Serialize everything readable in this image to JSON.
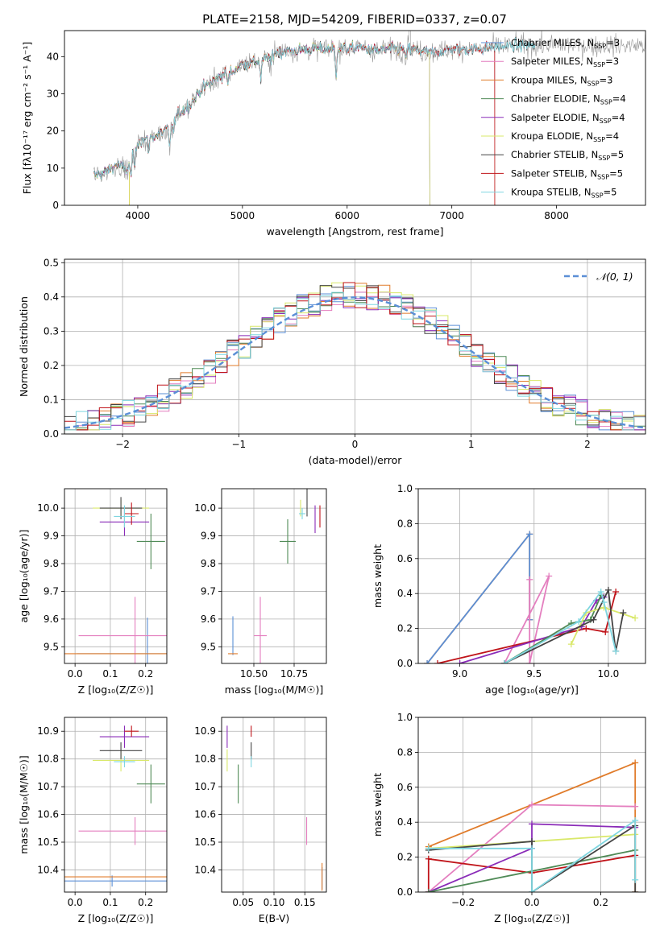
{
  "title": "PLATE=2158, MJD=54209, FIBERID=0337, z=0.07",
  "colors": {
    "Chabrier MILES": "#5b8fd6",
    "Salpeter MILES": "#e47fbf",
    "Kroupa MILES": "#e07b2a",
    "Chabrier ELODIE": "#4f8a56",
    "Salpeter ELODIE": "#8a2bb8",
    "Kroupa ELODIE": "#d9e86a",
    "Chabrier STELIB": "#444444",
    "Salpeter STELIB": "#c0141a",
    "Kroupa STELIB": "#7fd6e0"
  },
  "chart_data": [
    {
      "id": "spectrum",
      "type": "line",
      "xlabel": "wavelength [Angstrom, rest frame]",
      "ylabel": "Flux [f$_\\lambda$10$^{-17}$ erg cm$^{-2}$ s$^{-1}$ A$^{-1}$]",
      "ylabel_display": "Flux [fλ10⁻¹⁷ erg cm⁻² s⁻¹ A⁻¹]",
      "xlim": [
        3300,
        8850
      ],
      "ylim": [
        0,
        47
      ],
      "xticks": [
        4000,
        5000,
        6000,
        7000,
        8000
      ],
      "yticks": [
        0,
        10,
        20,
        30,
        40
      ],
      "grid": false,
      "legend_position": "right",
      "legend": [
        {
          "label": "Chabrier MILES, N",
          "sub": "SSP",
          "suffix": "=3",
          "key": "Chabrier MILES"
        },
        {
          "label": "Salpeter MILES, N",
          "sub": "SSP",
          "suffix": "=3",
          "key": "Salpeter MILES"
        },
        {
          "label": "Kroupa MILES, N",
          "sub": "SSP",
          "suffix": "=3",
          "key": "Kroupa MILES"
        },
        {
          "label": "Chabrier ELODIE, N",
          "sub": "SSP",
          "suffix": "=4",
          "key": "Chabrier ELODIE"
        },
        {
          "label": "Salpeter ELODIE, N",
          "sub": "SSP",
          "suffix": "=4",
          "key": "Salpeter ELODIE"
        },
        {
          "label": "Kroupa ELODIE, N",
          "sub": "SSP",
          "suffix": "=4",
          "key": "Kroupa ELODIE"
        },
        {
          "label": "Chabrier STELIB, N",
          "sub": "SSP",
          "suffix": "=5",
          "key": "Chabrier STELIB"
        },
        {
          "label": "Salpeter STELIB, N",
          "sub": "SSP",
          "suffix": "=5",
          "key": "Salpeter STELIB"
        },
        {
          "label": "Kroupa STELIB, N",
          "sub": "SSP",
          "suffix": "=5",
          "key": "Kroupa STELIB"
        }
      ],
      "continuum": [
        [
          3580,
          8
        ],
        [
          3700,
          9
        ],
        [
          3800,
          11
        ],
        [
          3900,
          9.5
        ],
        [
          4000,
          17
        ],
        [
          4100,
          18
        ],
        [
          4200,
          19
        ],
        [
          4300,
          21
        ],
        [
          4400,
          25
        ],
        [
          4500,
          27
        ],
        [
          4600,
          31
        ],
        [
          4700,
          33
        ],
        [
          4800,
          35
        ],
        [
          4900,
          36
        ],
        [
          5000,
          38
        ],
        [
          5100,
          38.5
        ],
        [
          5200,
          39
        ],
        [
          5300,
          41
        ],
        [
          5400,
          41.5
        ],
        [
          5500,
          41.5
        ],
        [
          5600,
          42
        ],
        [
          5700,
          42
        ],
        [
          5800,
          42
        ],
        [
          5900,
          42.5
        ],
        [
          6000,
          42
        ],
        [
          6100,
          42.5
        ],
        [
          6200,
          42
        ],
        [
          6300,
          41.5
        ],
        [
          6400,
          42
        ],
        [
          6500,
          42
        ],
        [
          6600,
          42
        ],
        [
          6700,
          41.5
        ],
        [
          6800,
          41
        ],
        [
          6900,
          41.5
        ],
        [
          7000,
          42
        ],
        [
          7200,
          42
        ],
        [
          7400,
          42.5
        ],
        [
          7600,
          43
        ]
      ],
      "absorption_lines": [
        {
          "x": 3934,
          "depth": 4
        },
        {
          "x": 3969,
          "depth": 4
        },
        {
          "x": 4102,
          "depth": 3
        },
        {
          "x": 4304,
          "depth": 6
        },
        {
          "x": 4340,
          "depth": 3
        },
        {
          "x": 4861,
          "depth": 3
        },
        {
          "x": 5175,
          "depth": 5
        },
        {
          "x": 5270,
          "depth": 3
        },
        {
          "x": 5894,
          "depth": 8
        },
        {
          "x": 6563,
          "depth": 3
        }
      ],
      "spectrum_end": [
        {
          "key": "Chabrier MILES",
          "x": 7410,
          "drop": true
        },
        {
          "key": "Salpeter MILES",
          "x": 7410,
          "drop": true
        },
        {
          "key": "Kroupa MILES",
          "x": 7410,
          "drop": true
        },
        {
          "key": "Chabrier ELODIE",
          "x": 6790,
          "drop": true
        },
        {
          "key": "Salpeter ELODIE",
          "x": 6790,
          "drop": true
        },
        {
          "key": "Kroupa ELODIE",
          "x": 6790,
          "drop": true
        },
        {
          "key": "Chabrier STELIB",
          "x": 7800,
          "drop": false
        },
        {
          "key": "Salpeter STELIB",
          "x": 7410,
          "drop": true
        },
        {
          "key": "Kroupa STELIB",
          "x": 7800,
          "drop": false
        }
      ],
      "observed_end": 8850
    },
    {
      "id": "residuals",
      "type": "histogram",
      "xlabel": "(data-model)/error",
      "ylabel": "Normed distribution",
      "xlim": [
        -2.5,
        2.5
      ],
      "ylim": [
        0,
        0.51
      ],
      "xticks": [
        -2,
        -1,
        0,
        1,
        2
      ],
      "yticks": [
        0.0,
        0.1,
        0.2,
        0.3,
        0.4,
        0.5
      ],
      "grid": true,
      "legend": [
        {
          "label": "𝒩(0, 1)",
          "style": "dashed",
          "color": "#5b8fd6"
        }
      ],
      "legend_position": "top-right",
      "bin_width": 0.1,
      "gaussian": {
        "mu": 0,
        "sigma": 1
      }
    },
    {
      "id": "age-vs-Z",
      "type": "errorbar",
      "xlabel": "Z [log₁₀(Z/Z☉)]",
      "ylabel": "age  [log₁₀(age/yr)]",
      "xlim": [
        -0.03,
        0.26
      ],
      "ylim": [
        9.44,
        10.07
      ],
      "xticks": [
        0.0,
        0.1,
        0.2
      ],
      "yticks": [
        9.5,
        9.6,
        9.7,
        9.8,
        9.9,
        10.0
      ],
      "grid": true,
      "points": [
        {
          "key": "Chabrier MILES",
          "x": 0.205,
          "xerr": 0.2,
          "y": 9.475,
          "yerr": 0.13
        },
        {
          "key": "Salpeter MILES",
          "x": 0.17,
          "xerr": 0.16,
          "y": 9.54,
          "yerr": 0.14
        },
        {
          "key": "Kroupa MILES",
          "x": 0.105,
          "xerr": 0.21,
          "y": 9.475,
          "yerr": 0.0
        },
        {
          "key": "Chabrier ELODIE",
          "x": 0.215,
          "xerr": 0.04,
          "y": 9.88,
          "yerr": 0.1
        },
        {
          "key": "Salpeter ELODIE",
          "x": 0.14,
          "xerr": 0.07,
          "y": 9.95,
          "yerr": 0.05
        },
        {
          "key": "Kroupa ELODIE",
          "x": 0.13,
          "xerr": 0.08,
          "y": 10.0,
          "yerr": 0.03
        },
        {
          "key": "Chabrier STELIB",
          "x": 0.13,
          "xerr": 0.06,
          "y": 10.0,
          "yerr": 0.04
        },
        {
          "key": "Salpeter STELIB",
          "x": 0.16,
          "xerr": 0.02,
          "y": 9.98,
          "yerr": 0.04
        },
        {
          "key": "Kroupa STELIB",
          "x": 0.14,
          "xerr": 0.03,
          "y": 9.97,
          "yerr": 0.04
        }
      ]
    },
    {
      "id": "age-vs-mass",
      "type": "errorbar",
      "xlabel": "mass [log₁₀(M/M☉)]",
      "ylabel": "",
      "xlim": [
        10.3,
        10.95
      ],
      "ylim": [
        9.44,
        10.07
      ],
      "xticks": [
        10.5,
        10.75
      ],
      "yticks": [
        9.5,
        9.6,
        9.7,
        9.8,
        9.9,
        10.0
      ],
      "grid": true,
      "points": [
        {
          "key": "Chabrier MILES",
          "x": 10.37,
          "xerr": 0.0,
          "y": 9.54,
          "yerr": 0.07
        },
        {
          "key": "Salpeter MILES",
          "x": 10.54,
          "xerr": 0.04,
          "y": 9.54,
          "yerr": 0.14
        },
        {
          "key": "Kroupa MILES",
          "x": 10.37,
          "xerr": 0.03,
          "y": 9.475,
          "yerr": 0.0
        },
        {
          "key": "Chabrier ELODIE",
          "x": 10.71,
          "xerr": 0.05,
          "y": 9.88,
          "yerr": 0.08
        },
        {
          "key": "Salpeter ELODIE",
          "x": 10.88,
          "xerr": 0.0,
          "y": 9.96,
          "yerr": 0.05
        },
        {
          "key": "Kroupa ELODIE",
          "x": 10.79,
          "xerr": 0.0,
          "y": 10.0,
          "yerr": 0.03
        },
        {
          "key": "Chabrier STELIB",
          "x": 10.83,
          "xerr": 0.0,
          "y": 10.02,
          "yerr": 0.05
        },
        {
          "key": "Salpeter STELIB",
          "x": 10.91,
          "xerr": 0.0,
          "y": 9.97,
          "yerr": 0.04
        },
        {
          "key": "Kroupa STELIB",
          "x": 10.8,
          "xerr": 0.02,
          "y": 9.98,
          "yerr": 0.02
        }
      ]
    },
    {
      "id": "mass-weight-vs-age",
      "type": "line",
      "xlabel": "age  [log₁₀(age/yr)]",
      "ylabel": "mass weight",
      "xlim": [
        8.72,
        10.25
      ],
      "ylim": [
        0,
        1
      ],
      "xticks": [
        9.0,
        9.5,
        10.0
      ],
      "yticks": [
        0.0,
        0.2,
        0.4,
        0.6,
        0.8,
        1.0
      ],
      "grid": true,
      "series": [
        {
          "key": "Kroupa MILES",
          "x": [
            8.78,
            9.47,
            9.47
          ],
          "y": [
            0.0,
            0.74,
            0.25
          ]
        },
        {
          "key": "Chabrier MILES",
          "x": [
            8.78,
            9.47,
            9.47
          ],
          "y": [
            0.0,
            0.74,
            0.25
          ]
        },
        {
          "key": "Salpeter MILES",
          "x": [
            9.47,
            9.47,
            9.6,
            9.3
          ],
          "y": [
            0.48,
            0.0,
            0.5,
            0.0
          ]
        },
        {
          "key": "Salpeter STELIB",
          "x": [
            8.85,
            9.85,
            9.98,
            10.05
          ],
          "y": [
            0.0,
            0.2,
            0.18,
            0.41
          ]
        },
        {
          "key": "Salpeter ELODIE",
          "x": [
            9.0,
            9.82,
            9.92,
            9.97
          ],
          "y": [
            0.0,
            0.21,
            0.36,
            0.38
          ]
        },
        {
          "key": "Chabrier ELODIE",
          "x": [
            9.3,
            9.75,
            9.88,
            9.95
          ],
          "y": [
            0.0,
            0.23,
            0.25,
            0.39
          ]
        },
        {
          "key": "Kroupa ELODIE",
          "x": [
            9.75,
            9.85,
            9.97,
            10.18
          ],
          "y": [
            0.11,
            0.29,
            0.32,
            0.26
          ]
        },
        {
          "key": "Chabrier STELIB",
          "x": [
            9.3,
            9.9,
            10.0,
            10.05,
            10.1
          ],
          "y": [
            0.0,
            0.25,
            0.42,
            0.07,
            0.29
          ]
        },
        {
          "key": "Kroupa STELIB",
          "x": [
            9.3,
            9.8,
            9.95,
            9.97,
            10.05
          ],
          "y": [
            0.0,
            0.24,
            0.41,
            0.35,
            0.07
          ]
        }
      ]
    },
    {
      "id": "mass-vs-Z",
      "type": "errorbar",
      "xlabel": "Z [log₁₀(Z/Z☉)]",
      "ylabel": "mass [log₁₀(M/M☉)]",
      "xlim": [
        -0.03,
        0.26
      ],
      "ylim": [
        10.32,
        10.95
      ],
      "xticks": [
        0.0,
        0.1,
        0.2
      ],
      "yticks": [
        10.4,
        10.5,
        10.6,
        10.7,
        10.8,
        10.9
      ],
      "grid": true,
      "points": [
        {
          "key": "Chabrier MILES",
          "x": 0.105,
          "xerr": 0.21,
          "y": 10.36,
          "yerr": 0.02
        },
        {
          "key": "Salpeter MILES",
          "x": 0.17,
          "xerr": 0.16,
          "y": 10.54,
          "yerr": 0.05
        },
        {
          "key": "Kroupa MILES",
          "x": 0.105,
          "xerr": 0.21,
          "y": 10.375,
          "yerr": 0.0
        },
        {
          "key": "Chabrier ELODIE",
          "x": 0.215,
          "xerr": 0.04,
          "y": 10.71,
          "yerr": 0.07
        },
        {
          "key": "Salpeter ELODIE",
          "x": 0.14,
          "xerr": 0.07,
          "y": 10.88,
          "yerr": 0.04
        },
        {
          "key": "Kroupa ELODIE",
          "x": 0.13,
          "xerr": 0.08,
          "y": 10.795,
          "yerr": 0.04
        },
        {
          "key": "Chabrier STELIB",
          "x": 0.13,
          "xerr": 0.06,
          "y": 10.83,
          "yerr": 0.03
        },
        {
          "key": "Salpeter STELIB",
          "x": 0.16,
          "xerr": 0.02,
          "y": 10.9,
          "yerr": 0.02
        },
        {
          "key": "Kroupa STELIB",
          "x": 0.14,
          "xerr": 0.03,
          "y": 10.79,
          "yerr": 0.02
        }
      ]
    },
    {
      "id": "mass-vs-ebv",
      "type": "errorbar",
      "xlabel": "E(B-V)",
      "ylabel": "",
      "xlim": [
        0.015,
        0.185
      ],
      "ylim": [
        10.32,
        10.95
      ],
      "xticks": [
        0.05,
        0.1,
        0.15
      ],
      "yticks": [
        10.4,
        10.5,
        10.6,
        10.7,
        10.8,
        10.9
      ],
      "grid": true,
      "points": [
        {
          "key": "Chabrier MILES",
          "x": 0.178,
          "xerr": 0.0,
          "y": 10.37,
          "yerr": 0.04
        },
        {
          "key": "Salpeter MILES",
          "x": 0.153,
          "xerr": 0.0,
          "y": 10.54,
          "yerr": 0.05
        },
        {
          "key": "Kroupa MILES",
          "x": 0.178,
          "xerr": 0.0,
          "y": 10.375,
          "yerr": 0.05
        },
        {
          "key": "Chabrier ELODIE",
          "x": 0.042,
          "xerr": 0.0,
          "y": 10.71,
          "yerr": 0.07
        },
        {
          "key": "Salpeter ELODIE",
          "x": 0.024,
          "xerr": 0.0,
          "y": 10.88,
          "yerr": 0.04
        },
        {
          "key": "Kroupa ELODIE",
          "x": 0.024,
          "xerr": 0.0,
          "y": 10.795,
          "yerr": 0.04
        },
        {
          "key": "Chabrier STELIB",
          "x": 0.063,
          "xerr": 0.0,
          "y": 10.83,
          "yerr": 0.03
        },
        {
          "key": "Salpeter STELIB",
          "x": 0.063,
          "xerr": 0.0,
          "y": 10.9,
          "yerr": 0.02
        },
        {
          "key": "Kroupa STELIB",
          "x": 0.063,
          "xerr": 0.0,
          "y": 10.79,
          "yerr": 0.02
        }
      ]
    },
    {
      "id": "mass-weight-vs-Z",
      "type": "line",
      "xlabel": "Z [log₁₀(Z/Z☉)]",
      "ylabel": "mass weight",
      "xlim": [
        -0.33,
        0.33
      ],
      "ylim": [
        0,
        1
      ],
      "xticks": [
        -0.2,
        0.0,
        0.2
      ],
      "yticks": [
        0.0,
        0.2,
        0.4,
        0.6,
        0.8,
        1.0
      ],
      "grid": true,
      "series": [
        {
          "key": "Kroupa MILES",
          "x": [
            -0.3,
            0.3,
            0.3
          ],
          "y": [
            0.26,
            0.74,
            0.0
          ]
        },
        {
          "key": "Salpeter MILES",
          "x": [
            -0.3,
            0.0,
            0.3
          ],
          "y": [
            0.0,
            0.5,
            0.49
          ]
        },
        {
          "key": "Salpeter STELIB",
          "x": [
            -0.3,
            -0.3,
            0.0,
            0.3
          ],
          "y": [
            0.0,
            0.19,
            0.11,
            0.21
          ]
        },
        {
          "key": "Salpeter ELODIE",
          "x": [
            -0.3,
            0.0,
            0.0,
            0.3
          ],
          "y": [
            0.0,
            0.25,
            0.39,
            0.37
          ]
        },
        {
          "key": "Kroupa ELODIE",
          "x": [
            -0.3,
            0.3
          ],
          "y": [
            0.25,
            0.33
          ]
        },
        {
          "key": "Chabrier ELODIE",
          "x": [
            -0.3,
            0.3
          ],
          "y": [
            0.0,
            0.24
          ]
        },
        {
          "key": "Chabrier STELIB",
          "x": [
            -0.3,
            0.0,
            0.0,
            0.3,
            0.3
          ],
          "y": [
            0.24,
            0.29,
            0.0,
            0.38,
            0.0
          ]
        },
        {
          "key": "Kroupa STELIB",
          "x": [
            -0.3,
            0.0,
            0.0,
            0.3,
            0.3
          ],
          "y": [
            0.25,
            0.25,
            0.0,
            0.41,
            0.07
          ]
        }
      ]
    }
  ]
}
